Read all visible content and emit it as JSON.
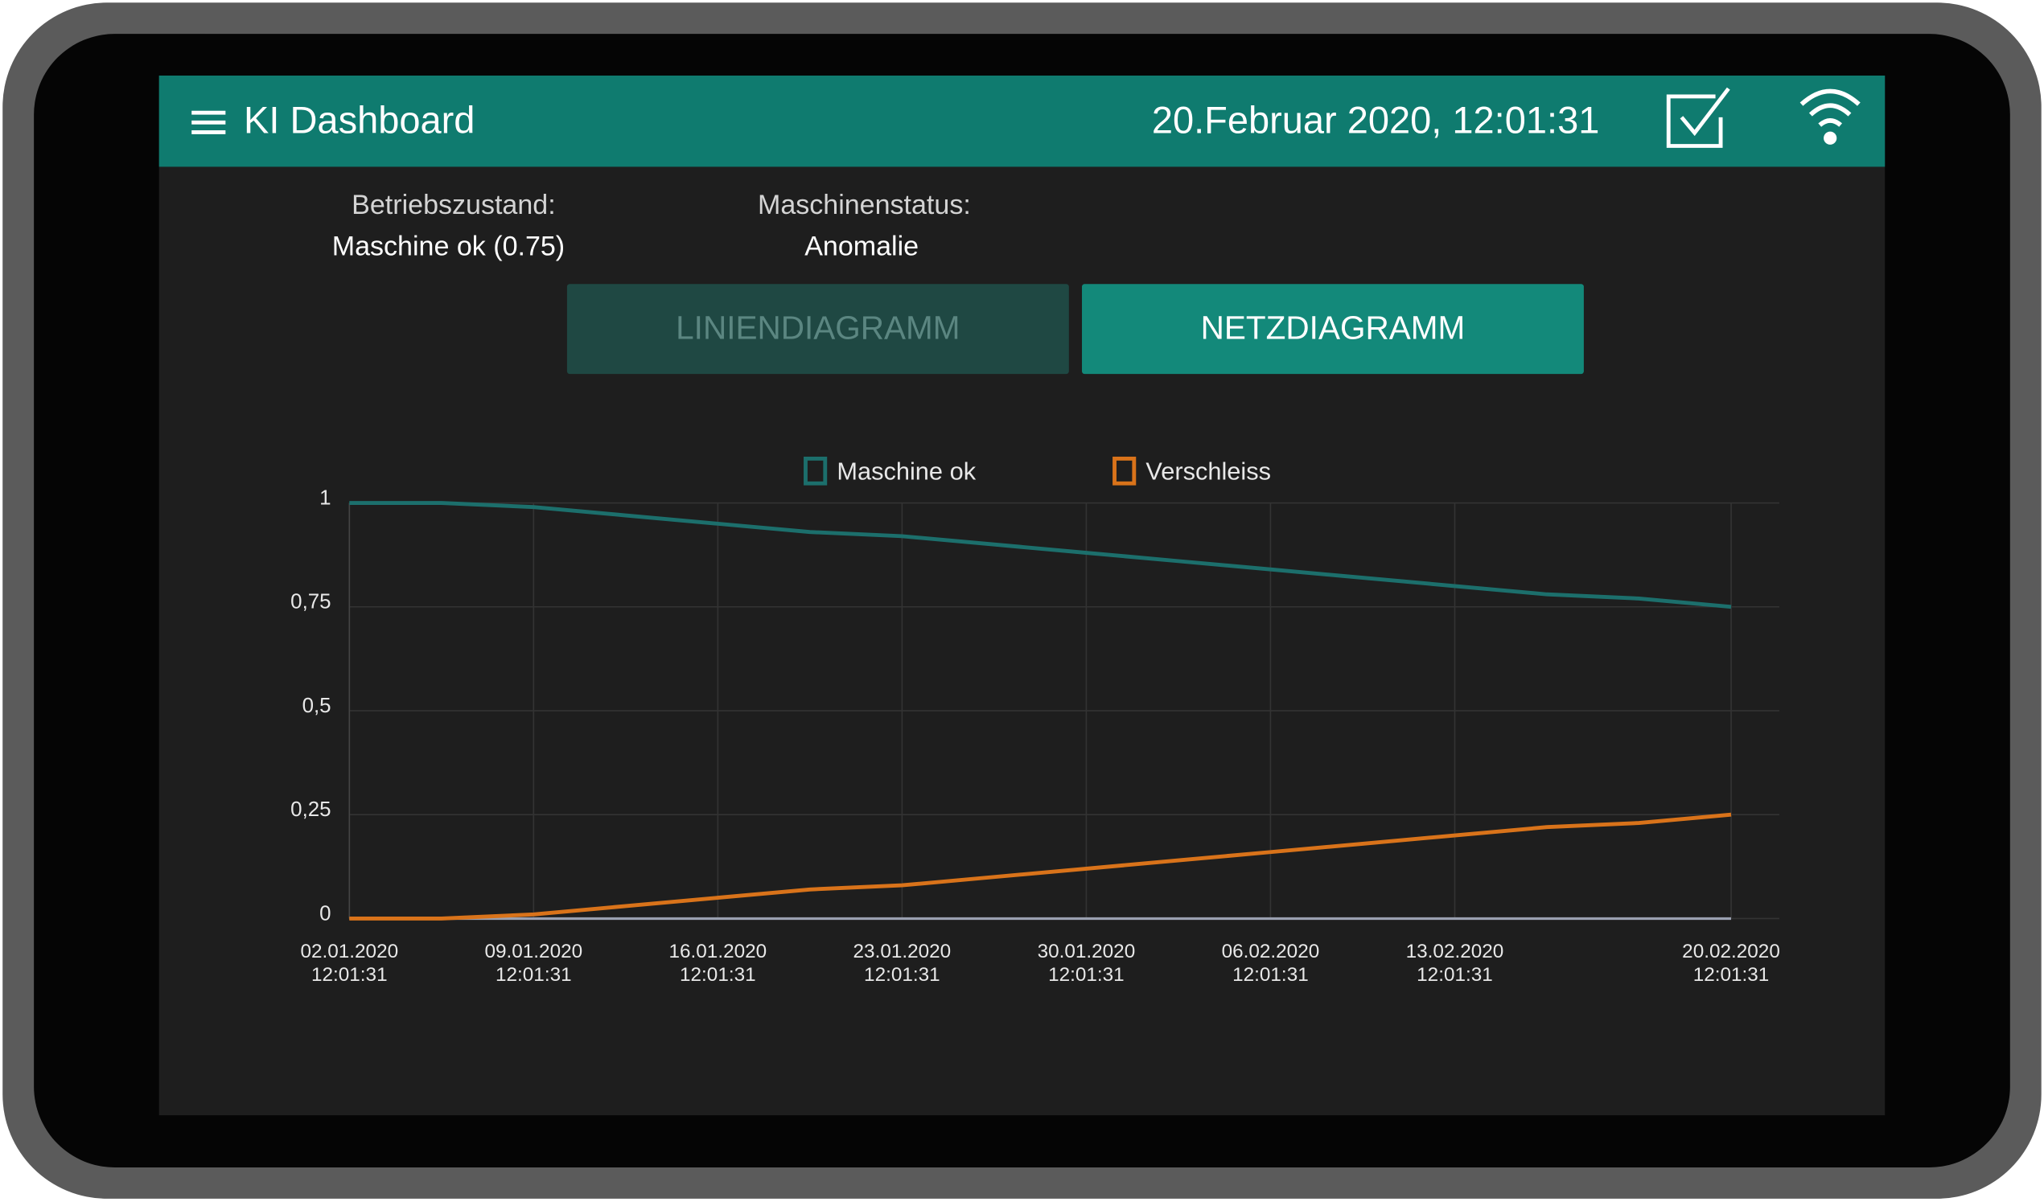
{
  "header": {
    "title": "KI Dashboard",
    "datetime": "20.Februar 2020, 12:01:31"
  },
  "status": [
    {
      "label": "Betriebszustand:",
      "value": "Maschine ok (0.75)"
    },
    {
      "label": "Maschinenstatus:",
      "value": "Anomalie"
    }
  ],
  "buttons": [
    "LINIENDIAGRAMM",
    "NETZDIAGRAMM"
  ],
  "chart_data": {
    "type": "line",
    "categories": [
      "02.01.2020\n12:01:31",
      null,
      "09.01.2020\n12:01:31",
      null,
      "16.01.2020\n12:01:31",
      null,
      "23.01.2020\n12:01:31",
      null,
      "30.01.2020\n12:01:31",
      null,
      "06.02.2020\n12:01:31",
      null,
      "13.02.2020\n12:01:31",
      null,
      null,
      "20.02.2020\n12:01:31"
    ],
    "series": [
      {
        "name": "Maschine ok",
        "color": "#1c6f6c",
        "values": [
          1,
          1,
          0.99,
          0.97,
          0.95,
          0.93,
          0.92,
          0.9,
          0.88,
          0.86,
          0.84,
          0.82,
          0.8,
          0.78,
          0.77,
          0.75
        ]
      },
      {
        "name": "Verschleiss",
        "color": "#d9731a",
        "values": [
          0,
          0,
          0.01,
          0.03,
          0.05,
          0.07,
          0.08,
          0.1,
          0.12,
          0.14,
          0.16,
          0.18,
          0.2,
          0.22,
          0.23,
          0.25
        ]
      }
    ],
    "ylim": [
      0,
      1
    ],
    "yticks": [
      0,
      {
        "value": 0.25,
        "label": "0,25"
      },
      {
        "value": 0.5,
        "label": "0,5"
      },
      {
        "value": 0.75,
        "label": "0,75"
      },
      1
    ],
    "grid": true
  }
}
